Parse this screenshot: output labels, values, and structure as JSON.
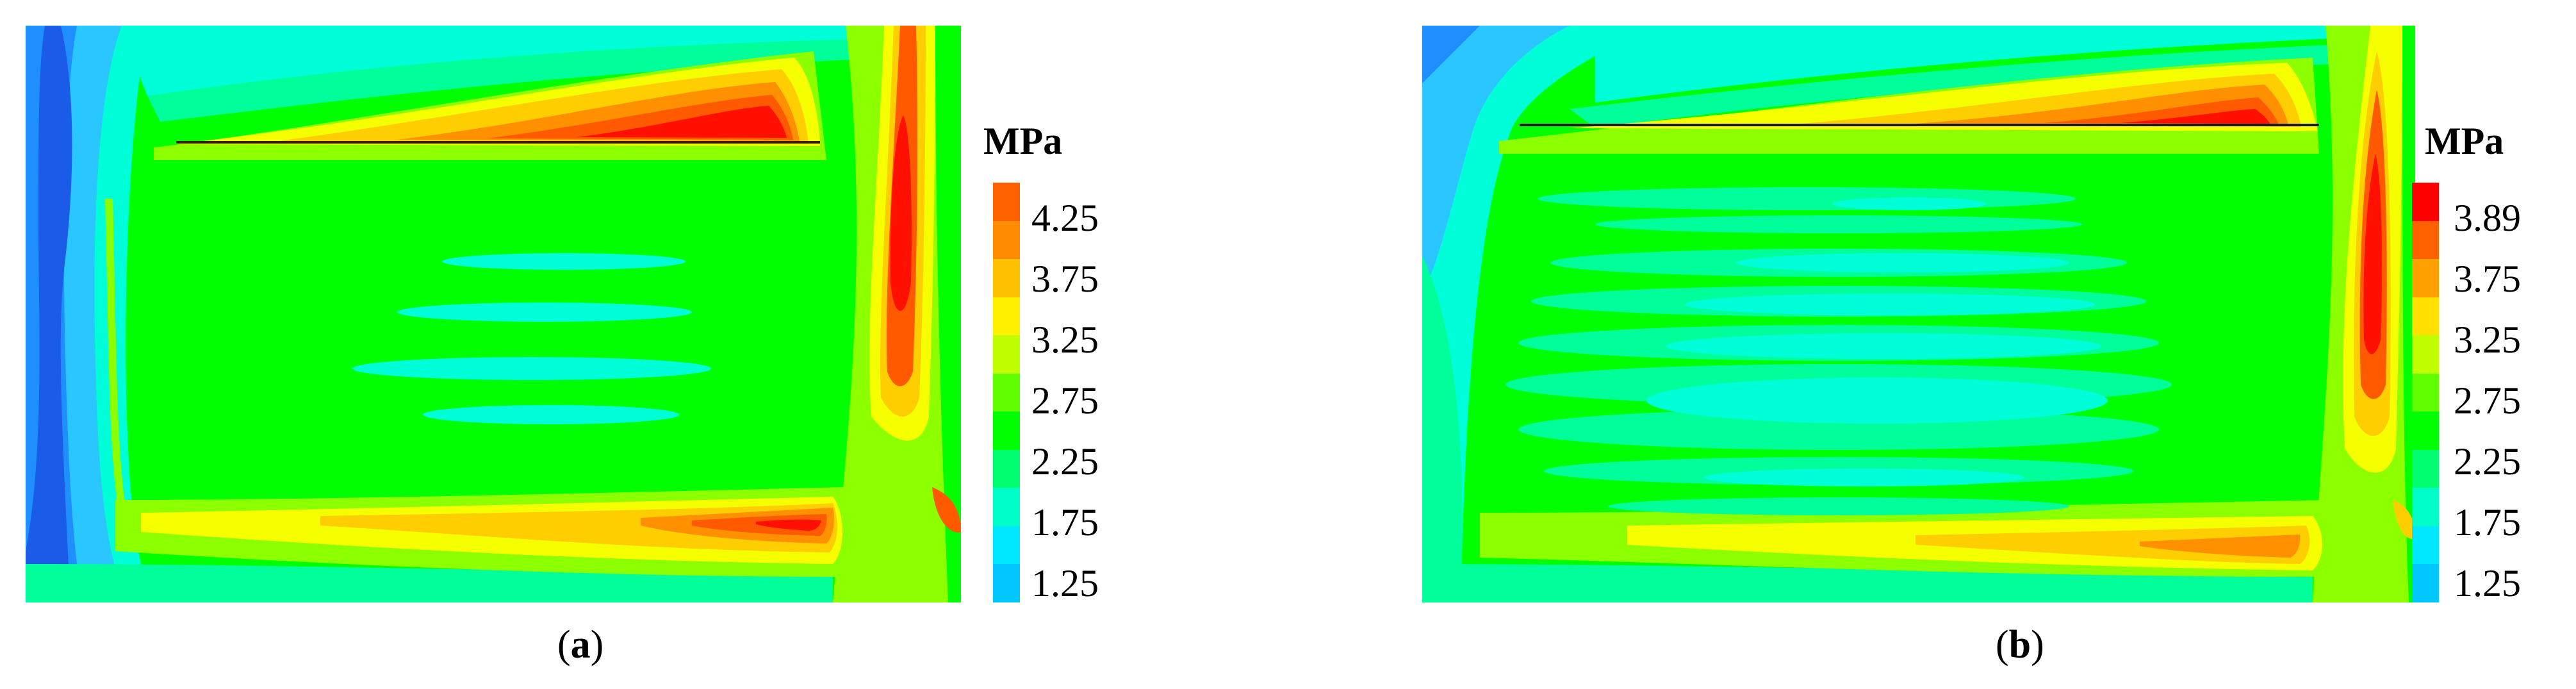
{
  "panels": [
    {
      "caption_open": "(",
      "caption_letter": "a",
      "caption_close": ")",
      "unit": "MPa",
      "legend_labels": [
        "4.25",
        "3.75",
        "3.25",
        "2.75",
        "2.25",
        "1.75",
        "1.25"
      ],
      "legend_colors": [
        "#ff6000",
        "#ff8c00",
        "#ffc000",
        "#fff000",
        "#c0ff00",
        "#60ff00",
        "#00ff00",
        "#00ff70",
        "#00ffc8",
        "#00e8ff",
        "#00c8ff"
      ]
    },
    {
      "caption_open": "(",
      "caption_letter": "b",
      "caption_close": ")",
      "unit": "MPa",
      "legend_labels": [
        "3.89",
        "3.75",
        "3.25",
        "2.75",
        "2.25",
        "1.75",
        "1.25"
      ],
      "legend_colors": [
        "#ff0000",
        "#ff6000",
        "#ffa000",
        "#ffe000",
        "#c0ff00",
        "#60ff00",
        "#00ff00",
        "#00ff70",
        "#00ffc8",
        "#00e8ff",
        "#00c8ff"
      ]
    }
  ],
  "contour_colors": {
    "deep_blue": "#1a5ce8",
    "blue": "#1f8fff",
    "light_blue": "#29c6ff",
    "cyan": "#00ffd8",
    "teal": "#00ff9a",
    "green": "#00ff00",
    "light_green": "#8cff00",
    "yellow": "#f5ff00",
    "gold": "#ffce00",
    "orange": "#ff9000",
    "dark_orange": "#ff5a00",
    "red": "#ff1000"
  }
}
